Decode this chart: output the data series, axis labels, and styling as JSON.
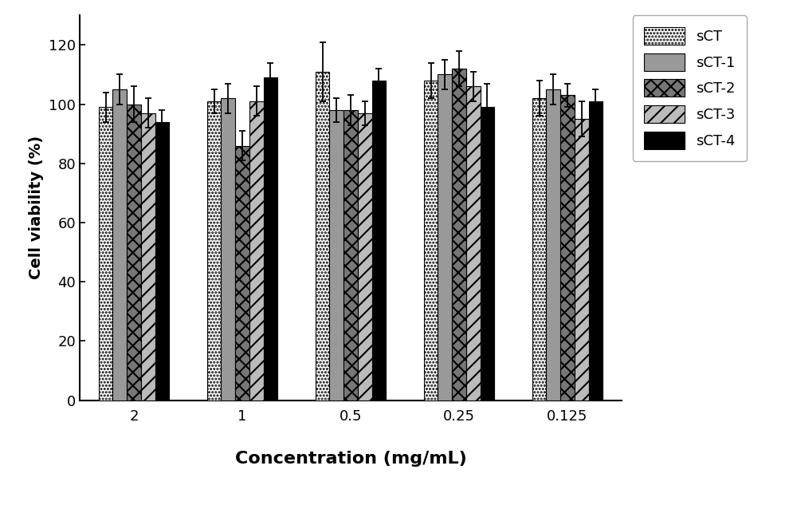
{
  "categories": [
    "2",
    "1",
    "0.5",
    "0.25",
    "0.125"
  ],
  "series": {
    "sCT": {
      "values": [
        99,
        101,
        111,
        108,
        102
      ],
      "errors": [
        5,
        4,
        10,
        6,
        6
      ],
      "color": "#ffffff",
      "edgecolor": "#000000",
      "hatch": "...."
    },
    "sCT-1": {
      "values": [
        105,
        102,
        98,
        110,
        105
      ],
      "errors": [
        5,
        5,
        4,
        5,
        5
      ],
      "color": "#999999",
      "edgecolor": "#000000",
      "hatch": ""
    },
    "sCT-2": {
      "values": [
        100,
        86,
        98,
        112,
        103
      ],
      "errors": [
        6,
        5,
        5,
        6,
        4
      ],
      "color": "#777777",
      "edgecolor": "#000000",
      "hatch": "xx"
    },
    "sCT-3": {
      "values": [
        97,
        101,
        97,
        106,
        95
      ],
      "errors": [
        5,
        5,
        4,
        5,
        6
      ],
      "color": "#bbbbbb",
      "edgecolor": "#000000",
      "hatch": "//"
    },
    "sCT-4": {
      "values": [
        94,
        109,
        108,
        99,
        101
      ],
      "errors": [
        4,
        5,
        4,
        8,
        4
      ],
      "color": "#000000",
      "edgecolor": "#000000",
      "hatch": ""
    }
  },
  "series_order": [
    "sCT",
    "sCT-1",
    "sCT-2",
    "sCT-3",
    "sCT-4"
  ],
  "ylabel": "Cell viability (%)",
  "xlabel": "Concentration (mg/mL)",
  "ylim": [
    0,
    130
  ],
  "yticks": [
    0,
    20,
    40,
    60,
    80,
    100,
    120
  ],
  "bar_width": 0.13,
  "figsize": [
    10.0,
    6.43
  ],
  "dpi": 100,
  "background_color": "#ffffff",
  "ylabel_fontsize": 14,
  "xlabel_fontsize": 16,
  "tick_fontsize": 13,
  "legend_fontsize": 13,
  "hatch_linewidth": 1.5
}
